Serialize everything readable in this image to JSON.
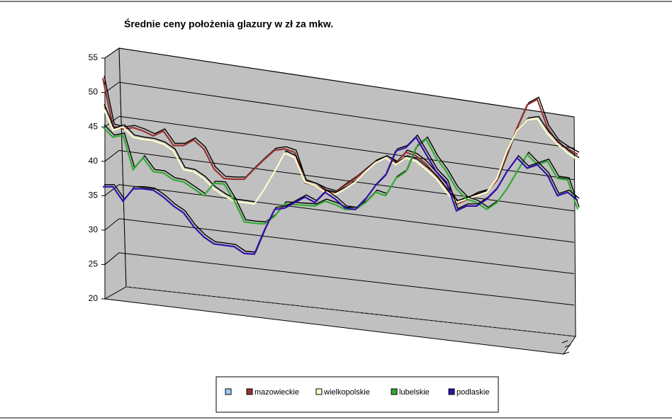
{
  "chart_data": {
    "type": "line",
    "title": "Średnie ceny położenia glazury w zł za mkw.",
    "ylim": [
      20,
      55
    ],
    "yticks": [
      20,
      25,
      30,
      35,
      40,
      45,
      50,
      55
    ],
    "grid": true,
    "series": [
      {
        "color": "#99ccff",
        "values": [
          null,
          null,
          null,
          null,
          null,
          null,
          null,
          null,
          null,
          null,
          null,
          null,
          null,
          null,
          null,
          null,
          null,
          null,
          null,
          null,
          null,
          null,
          null,
          null,
          null,
          null,
          null,
          null,
          null,
          null,
          null,
          null,
          null,
          null,
          null,
          null,
          null,
          null,
          null,
          null,
          null,
          null,
          null,
          null,
          null,
          null,
          null,
          null
        ]
      },
      {
        "name": "mazowieckie",
        "color": "#993333",
        "values": [
          52.1,
          45.1,
          44.7,
          44.9,
          44.4,
          43.7,
          44.4,
          42.3,
          42.3,
          43.1,
          41.8,
          38.9,
          37.5,
          37.4,
          37.4,
          38.9,
          40.3,
          41.6,
          41.8,
          41.3,
          36.9,
          36.5,
          35.8,
          35.4,
          36.5,
          37.5,
          38.7,
          39.9,
          40.5,
          39.7,
          41.3,
          40.8,
          39.6,
          37.9,
          36.2,
          33.8,
          34.4,
          35.2,
          35.6,
          37.2,
          41.0,
          44.9,
          48.2,
          49.0,
          44.9,
          42.8,
          41.8,
          41.0
        ]
      },
      {
        "name": "wielkopolskie",
        "color": "#ffffcc",
        "values": [
          48,
          44.5,
          45,
          43.5,
          43.2,
          43,
          42.5,
          41.5,
          38.8,
          38.5,
          37.5,
          36,
          35,
          34.2,
          34,
          33.8,
          36,
          38.5,
          41.2,
          40.5,
          37,
          36.5,
          35.5,
          35.2,
          36,
          37,
          38.5,
          39.8,
          40.5,
          39.5,
          40.5,
          40,
          38.8,
          37.5,
          35.5,
          34,
          34.5,
          35,
          35.5,
          37.5,
          41.5,
          44.5,
          46,
          46.2,
          44,
          42.5,
          41.2,
          40.2
        ]
      },
      {
        "name": "lubelskie",
        "color": "#33aa33",
        "values": [
          45.0,
          43.5,
          43.8,
          38.8,
          40.5,
          38.5,
          38.3,
          37.3,
          37.0,
          36.0,
          35.0,
          36.8,
          36.7,
          34.3,
          31.2,
          31.0,
          30.9,
          32.0,
          33.8,
          33.7,
          33.6,
          33.5,
          34.2,
          33.7,
          33.0,
          33.0,
          34.0,
          35.5,
          35.0,
          37.5,
          38.5,
          42.0,
          43.2,
          40.5,
          38.5,
          36.0,
          34.5,
          34.0,
          33.0,
          34.0,
          36.0,
          38.5,
          41.0,
          39.5,
          40.0,
          37.5,
          37.3,
          33.0
        ]
      },
      {
        "name": "podlaskie",
        "color": "#3311aa",
        "values": [
          36.3,
          36.3,
          34.2,
          36.0,
          36.0,
          35.8,
          34.8,
          33.5,
          32.5,
          30.5,
          29.0,
          28.0,
          27.8,
          27.6,
          26.6,
          26.5,
          30.0,
          33.0,
          33.2,
          34.0,
          34.8,
          34.0,
          35.5,
          34.5,
          33.2,
          33.0,
          34.5,
          36.5,
          38.0,
          41.5,
          42.0,
          43.5,
          41.0,
          38.5,
          37.0,
          32.8,
          33.5,
          33.5,
          34.5,
          36.0,
          38.5,
          40.5,
          39.0,
          39.5,
          38.0,
          35.0,
          35.5,
          34.3
        ]
      }
    ]
  }
}
